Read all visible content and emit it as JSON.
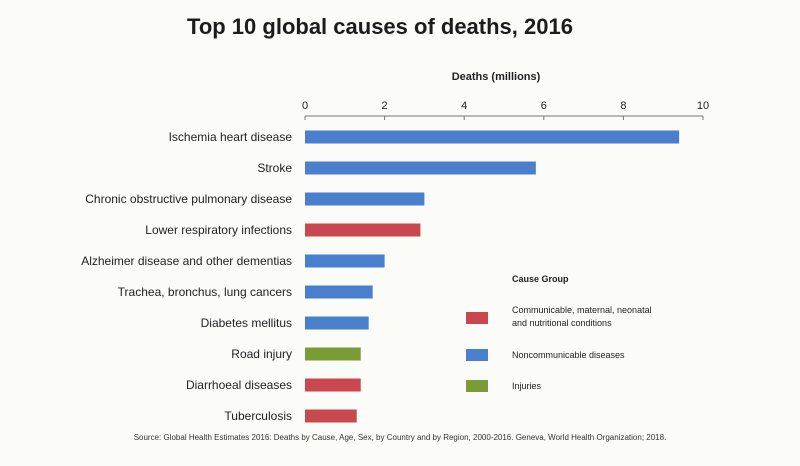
{
  "chart_data": {
    "type": "bar",
    "orientation": "horizontal",
    "title": "Top 10 global causes of deaths, 2016",
    "xlabel": "Deaths (millions)",
    "xlim": [
      0,
      10
    ],
    "xticks": [
      "0",
      "2",
      "4",
      "6",
      "8",
      "10"
    ],
    "categories": [
      "Ischemia heart disease",
      "Stroke",
      "Chronic obstructive pulmonary disease",
      "Lower respiratory infections",
      "Alzheimer disease and other dementias",
      "Trachea, bronchus, lung cancers",
      "Diabetes mellitus",
      "Road injury",
      "Diarrhoeal diseases",
      "Tuberculosis"
    ],
    "values": [
      9.4,
      5.8,
      3.0,
      2.9,
      2.0,
      1.7,
      1.6,
      1.4,
      1.4,
      1.3
    ],
    "groups": [
      "Noncommunicable diseases",
      "Noncommunicable diseases",
      "Noncommunicable diseases",
      "Communicable, maternal, neonatal and nutritional conditions",
      "Noncommunicable diseases",
      "Noncommunicable diseases",
      "Noncommunicable diseases",
      "Injuries",
      "Communicable, maternal, neonatal and nutritional conditions",
      "Communicable, maternal, neonatal and nutritional conditions"
    ],
    "legend": {
      "title": "Cause Group",
      "placement": "bottom-right",
      "items": [
        {
          "label": "Communicable, maternal, neonatal and nutritional conditions",
          "color": "#c9474f"
        },
        {
          "label": "Noncommunicable diseases",
          "color": "#4a7fce"
        },
        {
          "label": "Injuries",
          "color": "#7a9c36"
        }
      ]
    },
    "grid": false,
    "source": "Source:  Global Health Estimates  2016: Deaths by Cause,  Age,  Sex,  by Country and by Region,  2000-2016. Geneva, World Health Organization;  2018."
  }
}
